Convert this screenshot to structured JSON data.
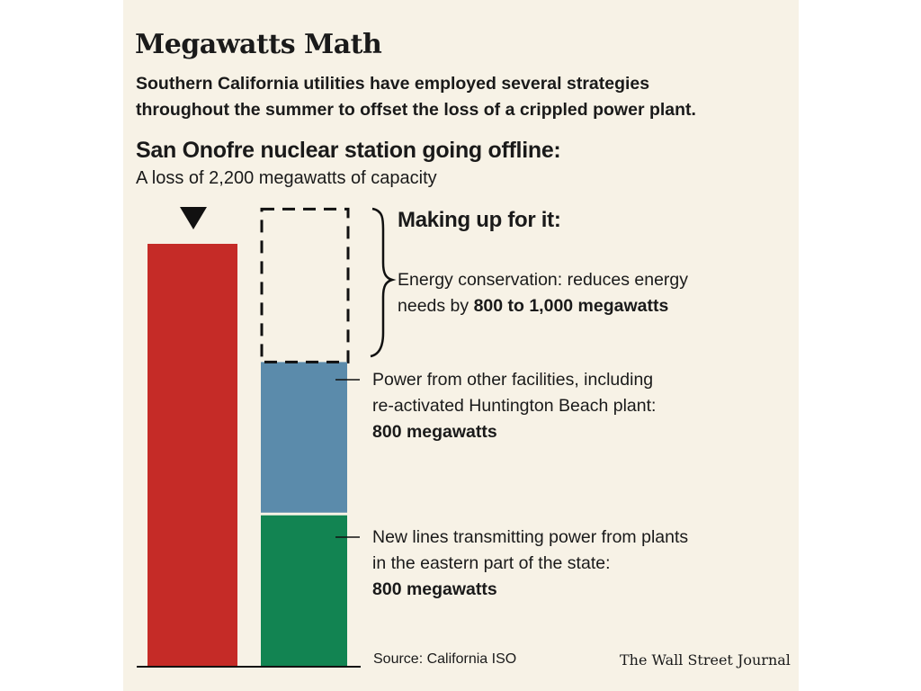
{
  "header": {
    "title": "Megawatts Math",
    "subtitle_line1": "Southern California utilities have employed several strategies",
    "subtitle_line2": "throughout the summer to offset the loss of a crippled power plant."
  },
  "loss": {
    "heading": "San Onofre nuclear station going offline:",
    "subheading": "A loss of 2,200 megawatts of capacity"
  },
  "making_up": {
    "heading": "Making up for it:"
  },
  "annotations": {
    "conservation": {
      "line1": "Energy conservation: reduces energy",
      "line2_prefix": "needs by ",
      "line2_bold": "800 to 1,000 megawatts"
    },
    "other_facilities": {
      "line1": "Power from other facilities, including",
      "line2": "re-activated Huntington Beach plant:",
      "line3_bold": "800 megawatts"
    },
    "new_lines": {
      "line1": "New lines transmitting power from plants",
      "line2": "in the eastern part of the state:",
      "line3_bold": "800 megawatts"
    }
  },
  "footer": {
    "source": "Source: California ISO",
    "credit": "The Wall Street Journal"
  },
  "colors": {
    "loss": "#c52b27",
    "other_facilities": "#5b8bab",
    "new_lines": "#128452",
    "background": "#f7f2e6"
  },
  "chart_data": {
    "type": "bar",
    "unit": "megawatts",
    "loss_total": 2200,
    "stack": [
      {
        "value": 800,
        "style": "solid",
        "color": "#128452"
      },
      {
        "value": 800,
        "style": "solid",
        "color": "#5b8bab"
      },
      {
        "value": 1000,
        "style": "dashed",
        "color": "none"
      }
    ]
  }
}
